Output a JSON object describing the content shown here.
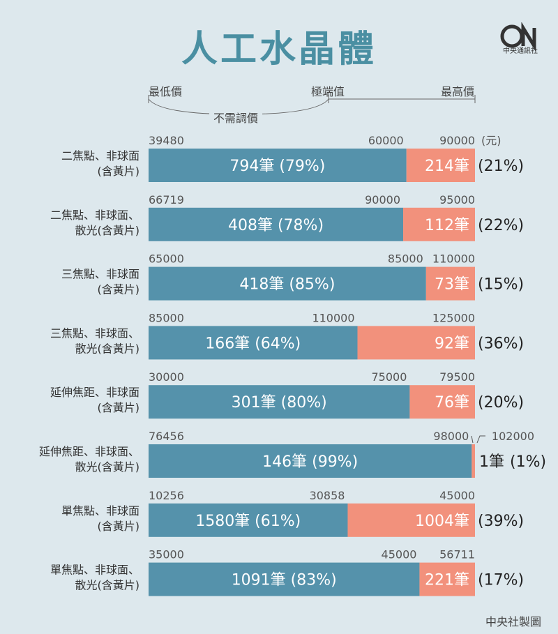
{
  "header": {
    "title": "人工水晶體",
    "logo_text": "中央通訊社"
  },
  "legend": {
    "min_label": "最低價",
    "extreme_label": "極端值",
    "max_label": "最高價",
    "no_adjust_label": "不需調價"
  },
  "colors": {
    "blue": "#5592ab",
    "salmon": "#f2917c",
    "background": "#dde8ed",
    "title": "#4a8fa2"
  },
  "chart_data": {
    "type": "bar",
    "orientation": "horizontal",
    "stacked": true,
    "unit": "(元)",
    "series": [
      {
        "name": "不需調價",
        "color": "#5592ab"
      },
      {
        "name": "極端值",
        "color": "#f2917c"
      }
    ],
    "rows": [
      {
        "label": [
          "二焦點、非球面",
          "(含黃片)"
        ],
        "min": "39480",
        "extreme": "60000",
        "max": "90000",
        "blue_count": "794筆 (79%)",
        "red_count": "214筆",
        "red_pct": "(21%)",
        "blue_share": 79,
        "red_share": 21
      },
      {
        "label": [
          "二焦點、非球面、",
          "散光(含黃片)"
        ],
        "min": "66719",
        "extreme": "90000",
        "max": "95000",
        "blue_count": "408筆 (78%)",
        "red_count": "112筆",
        "red_pct": "(22%)",
        "blue_share": 78,
        "red_share": 22
      },
      {
        "label": [
          "三焦點、非球面",
          "(含黃片)"
        ],
        "min": "65000",
        "extreme": "85000",
        "max": "110000",
        "blue_count": "418筆 (85%)",
        "red_count": "73筆",
        "red_pct": "(15%)",
        "blue_share": 85,
        "red_share": 15
      },
      {
        "label": [
          "三焦點、非球面、",
          "散光(含黃片)"
        ],
        "min": "85000",
        "extreme": "110000",
        "max": "125000",
        "blue_count": "166筆 (64%)",
        "red_count": "92筆",
        "red_pct": "(36%)",
        "blue_share": 64,
        "red_share": 36
      },
      {
        "label": [
          "延伸焦距、非球面",
          "(含黃片)"
        ],
        "min": "30000",
        "extreme": "75000",
        "max": "79500",
        "blue_count": "301筆 (80%)",
        "red_count": "76筆",
        "red_pct": "(20%)",
        "blue_share": 80,
        "red_share": 20
      },
      {
        "label": [
          "延伸焦距、非球面、",
          "散光(含黃片)"
        ],
        "min": "76456",
        "extreme": "98000",
        "max": "102000",
        "blue_count": "146筆 (99%)",
        "red_count": "1筆",
        "red_pct": "(1%)",
        "blue_share": 99,
        "red_share": 1
      },
      {
        "label": [
          "單焦點、非球面",
          "(含黃片)"
        ],
        "min": "10256",
        "extreme": "30858",
        "max": "45000",
        "blue_count": "1580筆 (61%)",
        "red_count": "1004筆",
        "red_pct": "(39%)",
        "blue_share": 61,
        "red_share": 39
      },
      {
        "label": [
          "單焦點、非球面、",
          "散光(含黃片)"
        ],
        "min": "35000",
        "extreme": "45000",
        "max": "56711",
        "blue_count": "1091筆 (83%)",
        "red_count": "221筆",
        "red_pct": "(17%)",
        "blue_share": 83,
        "red_share": 17
      }
    ]
  },
  "footer": {
    "credit": "中央社製圖"
  }
}
